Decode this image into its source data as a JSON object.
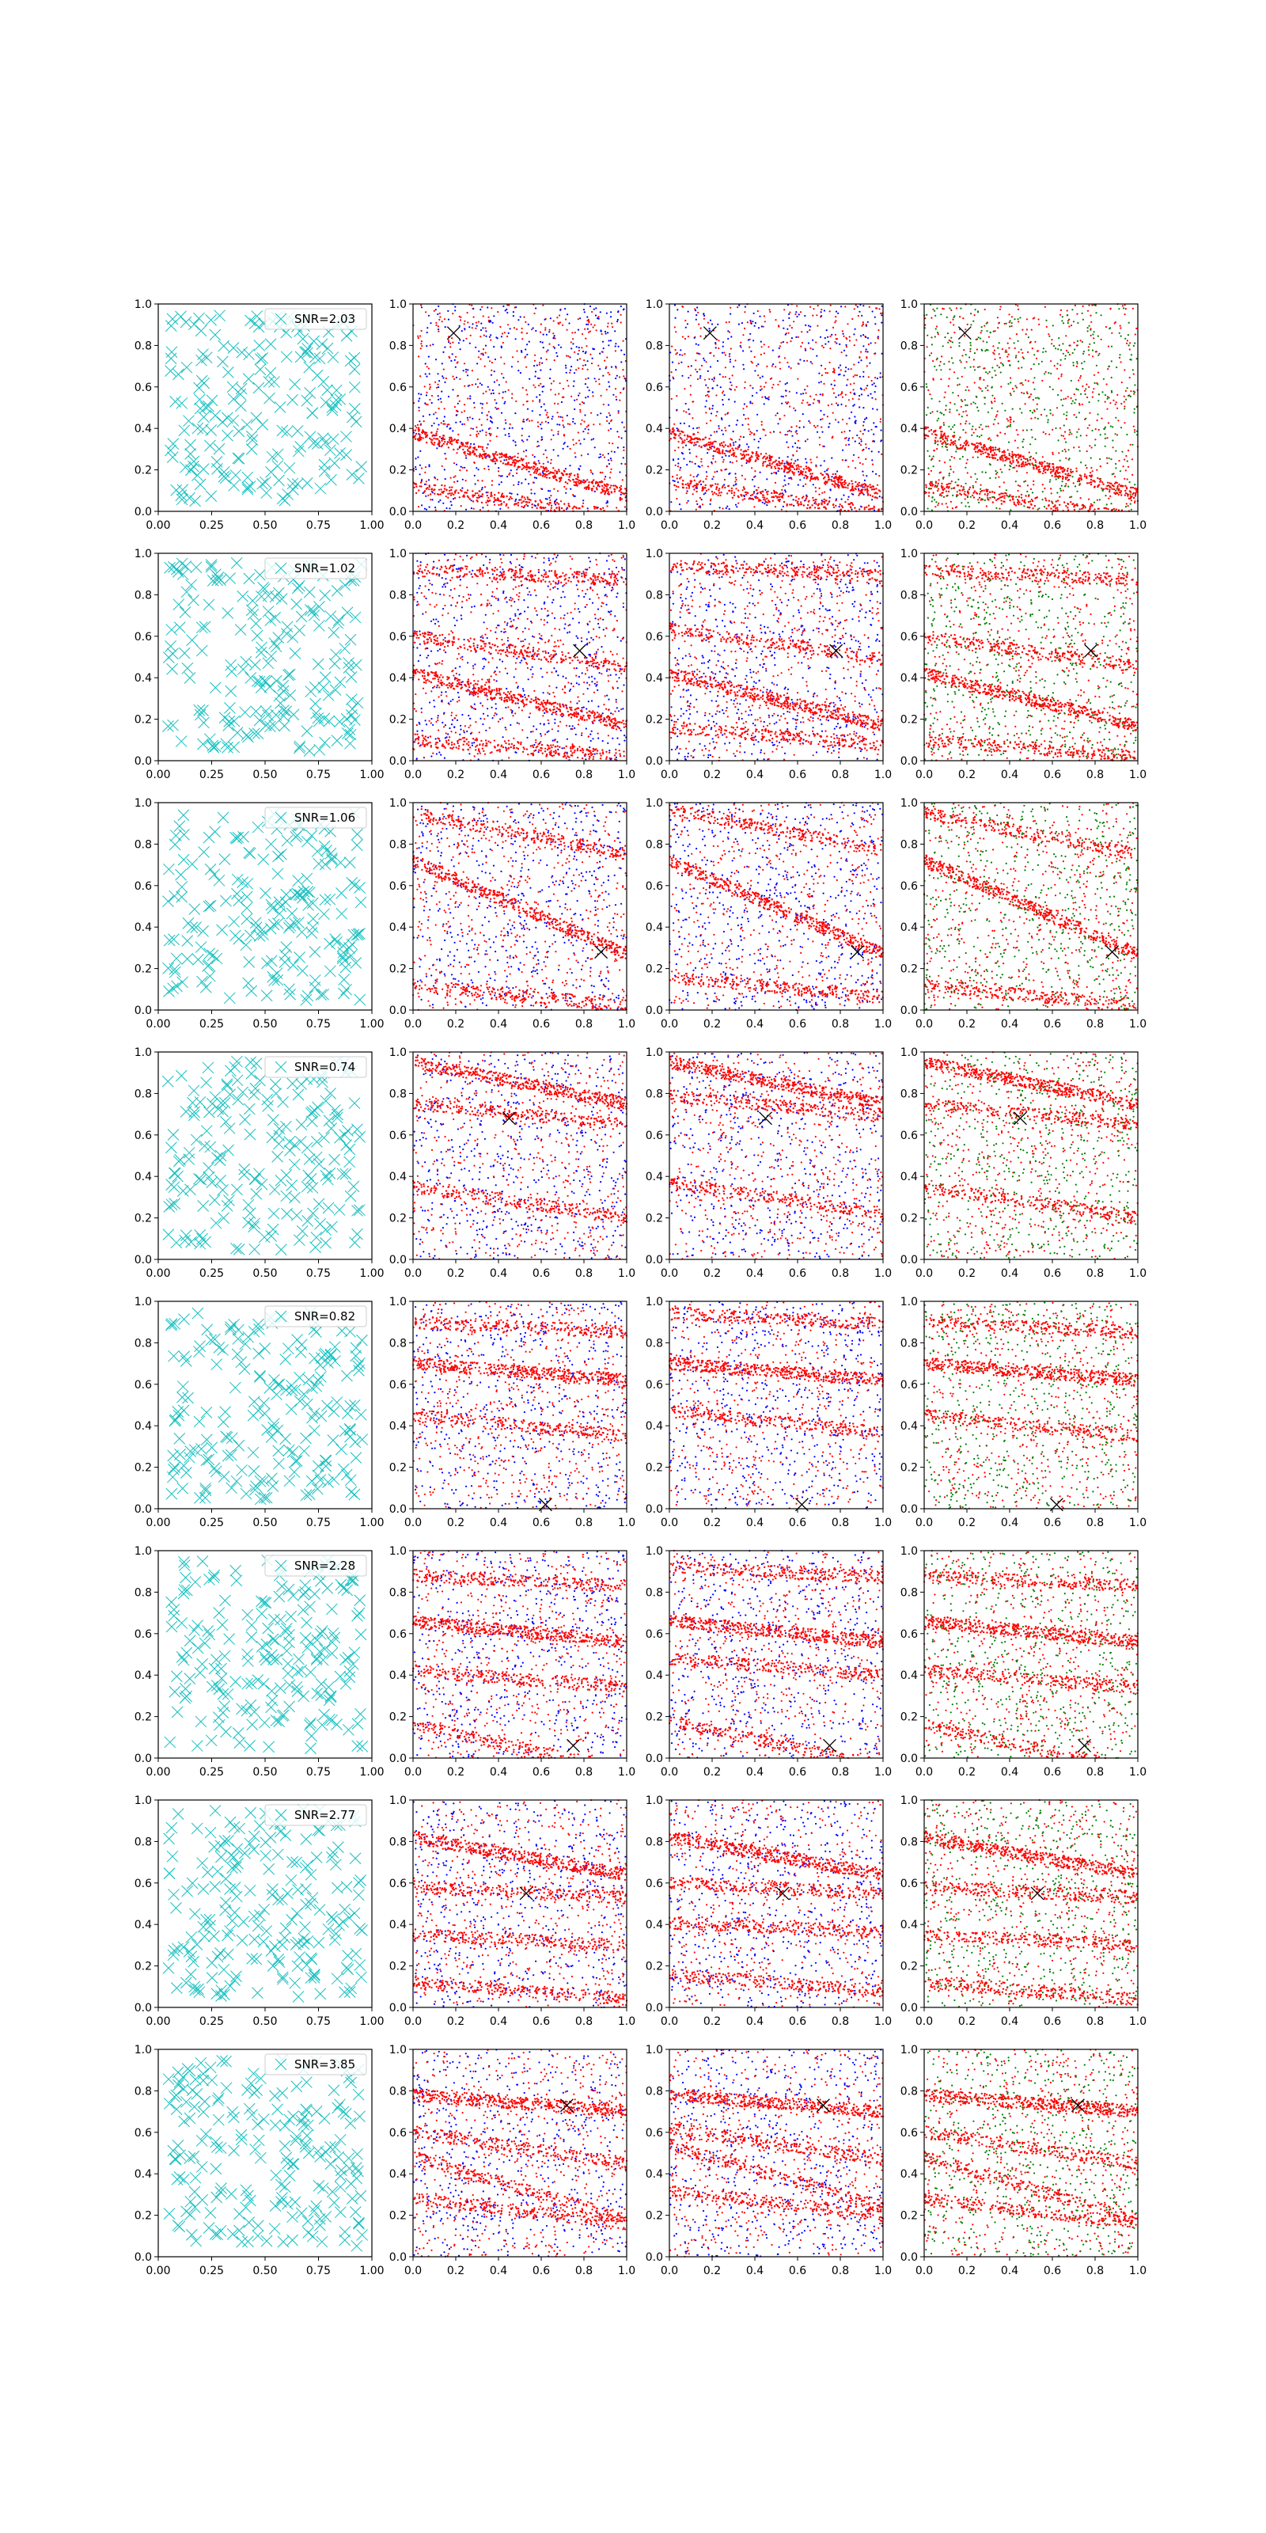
{
  "figure": {
    "rows": 8,
    "cols": 4,
    "colors": {
      "cyan_marker": "#17bfbf",
      "red": "#ff0000",
      "blue": "#0000ff",
      "green": "#008000",
      "true_marker": "#000000",
      "frame": "#000000"
    },
    "tick_values": [
      "0.0",
      "0.2",
      "0.4",
      "0.6",
      "0.8",
      "1.0"
    ],
    "x_ticks_first_col": [
      "0.00",
      "0.25",
      "0.50",
      "0.75",
      "1.00"
    ]
  },
  "chart_data": [
    {
      "row": 0,
      "type": "scatter",
      "legend": "SNR=2.03",
      "marker": [
        0.19,
        0.86
      ],
      "bands": [
        [
          0.38,
          -0.3
        ],
        [
          0.12,
          -0.15
        ]
      ],
      "xlim": [
        0,
        1
      ],
      "ylim": [
        0,
        1
      ]
    },
    {
      "row": 1,
      "type": "scatter",
      "legend": "SNR=1.02",
      "marker": [
        0.78,
        0.53
      ],
      "bands": [
        [
          0.42,
          -0.25
        ],
        [
          0.92,
          -0.05
        ],
        [
          0.6,
          -0.15
        ],
        [
          0.1,
          -0.08
        ]
      ],
      "xlim": [
        0,
        1
      ],
      "ylim": [
        0,
        1
      ]
    },
    {
      "row": 2,
      "type": "scatter",
      "legend": "SNR=1.06",
      "marker": [
        0.88,
        0.28
      ],
      "bands": [
        [
          0.72,
          -0.45
        ],
        [
          0.95,
          -0.2
        ],
        [
          0.12,
          -0.1
        ]
      ],
      "xlim": [
        0,
        1
      ],
      "ylim": [
        0,
        1
      ]
    },
    {
      "row": 3,
      "type": "scatter",
      "legend": "SNR=0.74",
      "marker": [
        0.45,
        0.68
      ],
      "bands": [
        [
          0.95,
          -0.2
        ],
        [
          0.35,
          -0.15
        ],
        [
          0.75,
          -0.1
        ]
      ],
      "xlim": [
        0,
        1
      ],
      "ylim": [
        0,
        1
      ]
    },
    {
      "row": 4,
      "type": "scatter",
      "legend": "SNR=0.82",
      "marker": [
        0.62,
        0.02
      ],
      "bands": [
        [
          0.7,
          -0.08
        ],
        [
          0.45,
          -0.1
        ],
        [
          0.9,
          -0.05
        ]
      ],
      "xlim": [
        0,
        1
      ],
      "ylim": [
        0,
        1
      ]
    },
    {
      "row": 5,
      "type": "scatter",
      "legend": "SNR=2.28",
      "marker": [
        0.75,
        0.06
      ],
      "bands": [
        [
          0.66,
          -0.1
        ],
        [
          0.16,
          -0.22
        ],
        [
          0.88,
          -0.05
        ],
        [
          0.42,
          -0.08
        ]
      ],
      "xlim": [
        0,
        1
      ],
      "ylim": [
        0,
        1
      ]
    },
    {
      "row": 6,
      "type": "scatter",
      "legend": "SNR=2.77",
      "marker": [
        0.53,
        0.55
      ],
      "bands": [
        [
          0.82,
          -0.18
        ],
        [
          0.58,
          -0.05
        ],
        [
          0.12,
          -0.08
        ],
        [
          0.35,
          -0.05
        ]
      ],
      "xlim": [
        0,
        1
      ],
      "ylim": [
        0,
        1
      ]
    },
    {
      "row": 7,
      "type": "scatter",
      "legend": "SNR=3.85",
      "marker": [
        0.72,
        0.73
      ],
      "bands": [
        [
          0.78,
          -0.08
        ],
        [
          0.6,
          -0.15
        ],
        [
          0.28,
          -0.12
        ],
        [
          0.48,
          -0.3
        ]
      ],
      "xlim": [
        0,
        1
      ],
      "ylim": [
        0,
        1
      ]
    }
  ]
}
